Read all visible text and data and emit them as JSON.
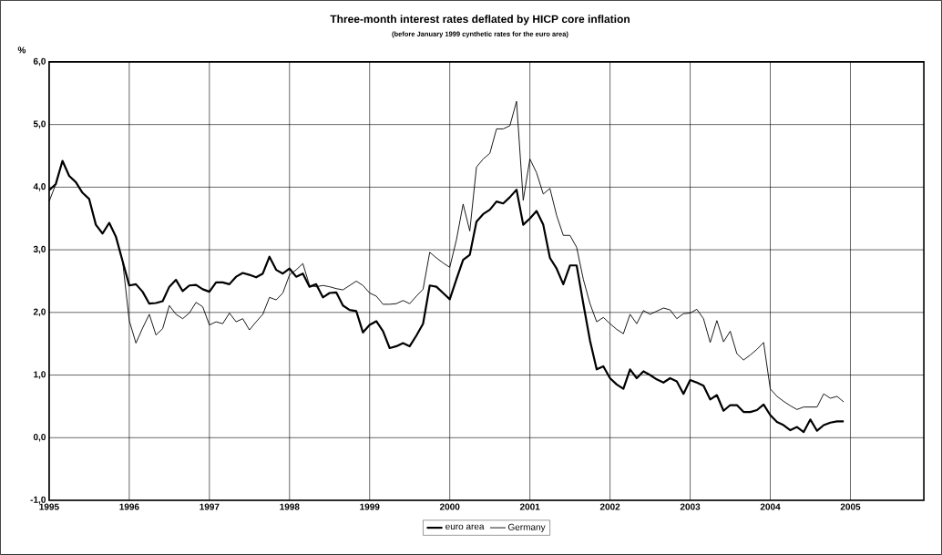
{
  "chart_data": {
    "type": "line",
    "title": "Three-month interest rates deflated by HICP core inflation",
    "subtitle": "(before January 1999 cynthetic rates for the euro area)",
    "ylabel": "%",
    "x": [
      "1995-01",
      "1995-02",
      "1995-03",
      "1995-04",
      "1995-05",
      "1995-06",
      "1995-07",
      "1995-08",
      "1995-09",
      "1995-10",
      "1995-11",
      "1995-12",
      "1996-01",
      "1996-02",
      "1996-03",
      "1996-04",
      "1996-05",
      "1996-06",
      "1996-07",
      "1996-08",
      "1996-09",
      "1996-10",
      "1996-11",
      "1996-12",
      "1997-01",
      "1997-02",
      "1997-03",
      "1997-04",
      "1997-05",
      "1997-06",
      "1997-07",
      "1997-08",
      "1997-09",
      "1997-10",
      "1997-11",
      "1997-12",
      "1998-01",
      "1998-02",
      "1998-03",
      "1998-04",
      "1998-05",
      "1998-06",
      "1998-07",
      "1998-08",
      "1998-09",
      "1998-10",
      "1998-11",
      "1998-12",
      "1999-01",
      "1999-02",
      "1999-03",
      "1999-04",
      "1999-05",
      "1999-06",
      "1999-07",
      "1999-08",
      "1999-09",
      "1999-10",
      "1999-11",
      "1999-12",
      "2000-01",
      "2000-02",
      "2000-03",
      "2000-04",
      "2000-05",
      "2000-06",
      "2000-07",
      "2000-08",
      "2000-09",
      "2000-10",
      "2000-11",
      "2000-12",
      "2001-01",
      "2001-02",
      "2001-03",
      "2001-04",
      "2001-05",
      "2001-06",
      "2001-07",
      "2001-08",
      "2001-09",
      "2001-10",
      "2001-11",
      "2001-12",
      "2002-01",
      "2002-02",
      "2002-03",
      "2002-04",
      "2002-05",
      "2002-06",
      "2002-07",
      "2002-08",
      "2002-09",
      "2002-10",
      "2002-11",
      "2002-12",
      "2003-01",
      "2003-02",
      "2003-03",
      "2003-04",
      "2003-05",
      "2003-06",
      "2003-07",
      "2003-08",
      "2003-09",
      "2003-10",
      "2003-11",
      "2003-12",
      "2004-01",
      "2004-02",
      "2004-03",
      "2004-04",
      "2004-05",
      "2004-06",
      "2004-07",
      "2004-08",
      "2004-09",
      "2004-10",
      "2004-11",
      "2004-12"
    ],
    "series": [
      {
        "name": "euro area",
        "color": "#000000",
        "values": [
          3.95,
          4.05,
          4.42,
          4.18,
          4.08,
          3.91,
          3.81,
          3.4,
          3.26,
          3.43,
          3.21,
          2.82,
          2.43,
          2.45,
          2.33,
          2.14,
          2.15,
          2.18,
          2.41,
          2.52,
          2.34,
          2.43,
          2.44,
          2.37,
          2.33,
          2.48,
          2.48,
          2.45,
          2.57,
          2.63,
          2.6,
          2.56,
          2.62,
          2.89,
          2.68,
          2.62,
          2.7,
          2.57,
          2.62,
          2.41,
          2.45,
          2.24,
          2.31,
          2.32,
          2.11,
          2.04,
          2.02,
          1.68,
          1.8,
          1.86,
          1.7,
          1.43,
          1.46,
          1.51,
          1.46,
          1.63,
          1.82,
          2.43,
          2.41,
          2.31,
          2.21,
          2.53,
          2.84,
          2.92,
          3.45,
          3.57,
          3.64,
          3.77,
          3.74,
          3.84,
          3.96,
          3.4,
          3.5,
          3.62,
          3.4,
          2.87,
          2.7,
          2.45,
          2.75,
          2.75,
          2.14,
          1.55,
          1.09,
          1.14,
          0.95,
          0.85,
          0.78,
          1.09,
          0.95,
          1.06,
          1.0,
          0.93,
          0.88,
          0.95,
          0.9,
          0.7,
          0.92,
          0.88,
          0.83,
          0.61,
          0.68,
          0.43,
          0.52,
          0.52,
          0.41,
          0.41,
          0.44,
          0.53,
          0.36,
          0.25,
          0.2,
          0.12,
          0.17,
          0.09,
          0.29,
          0.11,
          0.2,
          0.24,
          0.26,
          0.26
        ]
      },
      {
        "name": "Germany",
        "color": "#000000",
        "values": [
          3.77,
          4.05,
          4.42,
          4.18,
          4.08,
          3.91,
          3.81,
          3.4,
          3.26,
          3.43,
          3.21,
          2.82,
          1.87,
          1.51,
          1.75,
          1.97,
          1.64,
          1.74,
          2.11,
          1.97,
          1.9,
          1.99,
          2.16,
          2.09,
          1.8,
          1.85,
          1.82,
          1.99,
          1.85,
          1.9,
          1.72,
          1.85,
          1.97,
          2.24,
          2.2,
          2.31,
          2.6,
          2.68,
          2.78,
          2.43,
          2.41,
          2.43,
          2.41,
          2.38,
          2.36,
          2.43,
          2.5,
          2.43,
          2.31,
          2.26,
          2.13,
          2.13,
          2.14,
          2.19,
          2.14,
          2.26,
          2.37,
          2.96,
          2.87,
          2.79,
          2.72,
          3.16,
          3.73,
          3.3,
          4.32,
          4.45,
          4.54,
          4.93,
          4.93,
          4.98,
          5.37,
          3.79,
          4.45,
          4.23,
          3.89,
          3.98,
          3.55,
          3.23,
          3.23,
          3.04,
          2.53,
          2.14,
          1.85,
          1.92,
          1.82,
          1.73,
          1.66,
          1.97,
          1.82,
          2.03,
          1.97,
          2.02,
          2.07,
          2.04,
          1.9,
          1.98,
          1.99,
          2.05,
          1.9,
          1.52,
          1.87,
          1.53,
          1.7,
          1.34,
          1.24,
          1.32,
          1.41,
          1.52,
          0.78,
          0.66,
          0.58,
          0.51,
          0.45,
          0.49,
          0.49,
          0.49,
          0.7,
          0.63,
          0.66,
          0.57
        ]
      }
    ],
    "xlim": [
      "1995-01",
      "2005-12"
    ],
    "xticks": [
      "1995",
      "1996",
      "1997",
      "1998",
      "1999",
      "2000",
      "2001",
      "2002",
      "2003",
      "2004",
      "2005"
    ],
    "ylim": [
      -1,
      6
    ],
    "yticks": [
      {
        "value": -1,
        "label": "-1,0"
      },
      {
        "value": 0,
        "label": "0,0"
      },
      {
        "value": 1,
        "label": "1,0"
      },
      {
        "value": 2,
        "label": "2,0"
      },
      {
        "value": 3,
        "label": "3,0"
      },
      {
        "value": 4,
        "label": "4,0"
      },
      {
        "value": 5,
        "label": "5,0"
      },
      {
        "value": 6,
        "label": "6,0"
      }
    ],
    "grid": true,
    "legend": "bottom",
    "marker": "none",
    "line_style": "solid"
  }
}
